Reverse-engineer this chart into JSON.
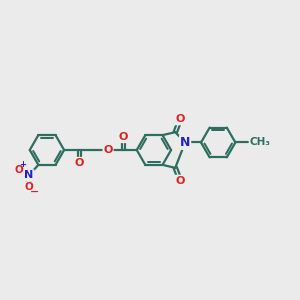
{
  "background_color": "#ebebeb",
  "bond_color": "#2d6e5e",
  "bond_width": 1.6,
  "n_color": "#2222cc",
  "o_color": "#dd2222",
  "figsize": [
    3.0,
    3.0
  ],
  "dpi": 100,
  "xlim": [
    0,
    12
  ],
  "ylim": [
    2,
    9
  ]
}
